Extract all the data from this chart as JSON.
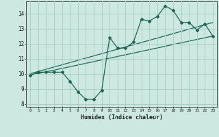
{
  "xlabel": "Humidex (Indice chaleur)",
  "x": [
    0,
    1,
    2,
    3,
    4,
    5,
    6,
    7,
    8,
    9,
    10,
    11,
    12,
    13,
    14,
    15,
    16,
    17,
    18,
    19,
    20,
    21,
    22,
    23
  ],
  "y_main": [
    9.9,
    10.1,
    10.1,
    10.1,
    10.1,
    9.5,
    8.8,
    8.3,
    8.3,
    8.9,
    12.4,
    11.7,
    11.7,
    12.1,
    13.6,
    13.5,
    13.8,
    14.5,
    14.2,
    13.4,
    13.4,
    12.9,
    13.3,
    12.5
  ],
  "trend1_x": [
    0,
    23
  ],
  "trend1_y": [
    9.9,
    12.5
  ],
  "trend2_x": [
    0,
    23
  ],
  "trend2_y": [
    10.0,
    13.4
  ],
  "bg_color": "#cde8e0",
  "grid_color": "#a8cfc7",
  "line_color": "#1a6655",
  "ylim": [
    7.8,
    14.8
  ],
  "xlim": [
    -0.5,
    23.5
  ],
  "yticks": [
    8,
    9,
    10,
    11,
    12,
    13,
    14
  ],
  "xticks": [
    0,
    1,
    2,
    3,
    4,
    5,
    6,
    7,
    8,
    9,
    10,
    11,
    12,
    13,
    14,
    15,
    16,
    17,
    18,
    19,
    20,
    21,
    22,
    23
  ]
}
